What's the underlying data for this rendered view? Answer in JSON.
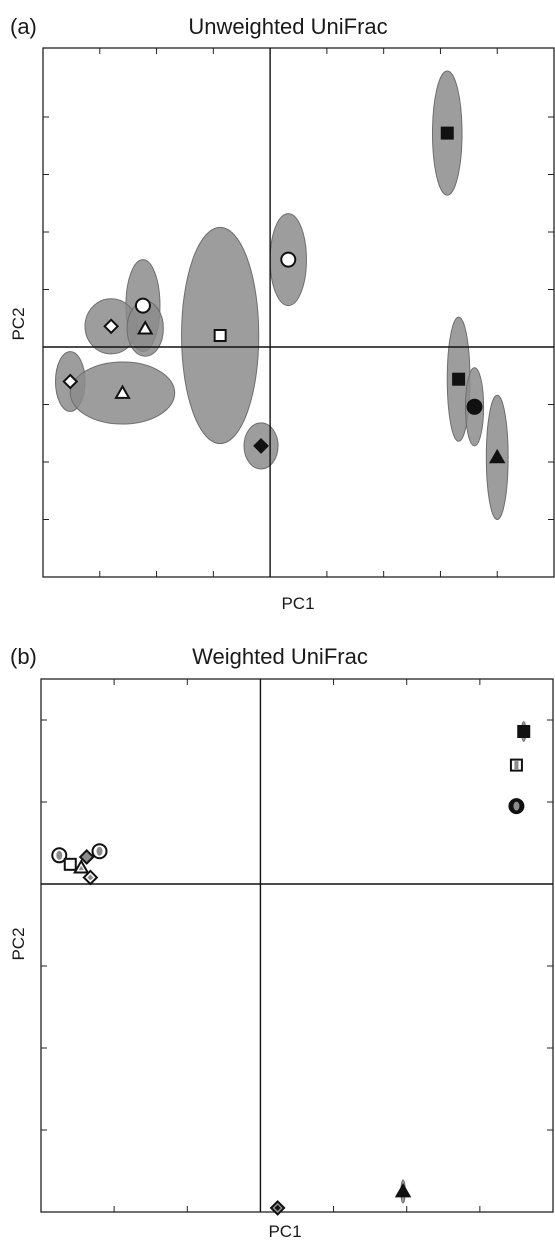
{
  "chart_data": [
    {
      "type": "scatter",
      "panel_label": "(a)",
      "title": "Unweighted UniFrac",
      "xlabel": "PC1",
      "ylabel": "PC2",
      "xlim": [
        -1.0,
        1.25
      ],
      "ylim": [
        -1.0,
        1.3
      ],
      "grid": false,
      "zero_lines": true,
      "tick_labels": false,
      "points": [
        {
          "marker": "square-black",
          "x": 0.78,
          "y": 0.93,
          "ex": 0.065,
          "ey": 0.27
        },
        {
          "marker": "circle-white",
          "x": 0.08,
          "y": 0.38,
          "ex": 0.08,
          "ey": 0.2
        },
        {
          "marker": "circle-white",
          "x": -0.56,
          "y": 0.18,
          "ex": 0.075,
          "ey": 0.2
        },
        {
          "marker": "diamond-white",
          "x": -0.7,
          "y": 0.09,
          "ex": 0.115,
          "ey": 0.12
        },
        {
          "marker": "triangle-white",
          "x": -0.55,
          "y": 0.08,
          "ex": 0.08,
          "ey": 0.12
        },
        {
          "marker": "square-white",
          "x": -0.22,
          "y": 0.05,
          "ex": 0.17,
          "ey": 0.47
        },
        {
          "marker": "diamond-white",
          "x": -0.88,
          "y": -0.15,
          "ex": 0.065,
          "ey": 0.13
        },
        {
          "marker": "triangle-white",
          "x": -0.65,
          "y": -0.2,
          "ex": 0.23,
          "ey": 0.135
        },
        {
          "marker": "diamond-black",
          "x": -0.04,
          "y": -0.43,
          "ex": 0.075,
          "ey": 0.1
        },
        {
          "marker": "square-black",
          "x": 0.83,
          "y": -0.14,
          "ex": 0.05,
          "ey": 0.27
        },
        {
          "marker": "circle-black",
          "x": 0.9,
          "y": -0.26,
          "ex": 0.04,
          "ey": 0.17
        },
        {
          "marker": "triangle-black",
          "x": 1.0,
          "y": -0.48,
          "ex": 0.048,
          "ey": 0.27
        }
      ]
    },
    {
      "type": "scatter",
      "panel_label": "(b)",
      "title": "Weighted UniFrac",
      "xlabel": "PC1",
      "ylabel": "PC2",
      "xlim": [
        -0.6,
        0.8
      ],
      "ylim": [
        -0.4,
        0.25
      ],
      "grid": false,
      "zero_lines": true,
      "tick_labels": false,
      "points": [
        {
          "marker": "square-black",
          "x": 0.72,
          "y": 0.186,
          "ex": 0.006,
          "ey": 0.012
        },
        {
          "marker": "square-white-gray",
          "x": 0.7,
          "y": 0.145,
          "ex": 0.005,
          "ey": 0.007
        },
        {
          "marker": "circle-black-gray",
          "x": 0.7,
          "y": 0.095,
          "ex": 0.003,
          "ey": 0.004
        },
        {
          "marker": "circle-white-gray",
          "x": -0.55,
          "y": 0.035,
          "ex": 0.0,
          "ey": 0.0
        },
        {
          "marker": "circle-white-gray",
          "x": -0.44,
          "y": 0.04,
          "ex": 0.0,
          "ey": 0.0
        },
        {
          "marker": "square-white",
          "x": -0.52,
          "y": 0.024,
          "ex": 0.0,
          "ey": 0.0
        },
        {
          "marker": "diamond-gray",
          "x": -0.475,
          "y": 0.033,
          "ex": 0.0,
          "ey": 0.0
        },
        {
          "marker": "triangle-white-gray",
          "x": -0.49,
          "y": 0.02,
          "ex": 0.0,
          "ey": 0.0
        },
        {
          "marker": "diamond-white-gray",
          "x": -0.465,
          "y": 0.008,
          "ex": 0.0,
          "ey": 0.0
        },
        {
          "marker": "diamond-gray-black",
          "x": 0.047,
          "y": -0.395,
          "ex": 0.004,
          "ey": 0.005
        },
        {
          "marker": "triangle-black",
          "x": 0.39,
          "y": -0.375,
          "ex": 0.006,
          "ey": 0.014
        }
      ]
    }
  ]
}
